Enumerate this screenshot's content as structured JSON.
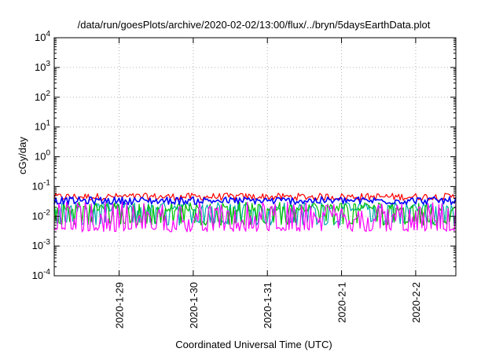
{
  "chart_data": {
    "type": "line",
    "title": "/data/run/goesPlots/archive/2020-02-02/13:00/flux/../bryn/5daysEarthData.plot",
    "xlabel": "Coordinated Universal Time (UTC)",
    "ylabel": "cGy/day",
    "yscale": "log",
    "ylim": [
      0.0001,
      10000
    ],
    "xlim": [
      "2020-01-28T03:00",
      "2020-02-02T13:00"
    ],
    "y_ticks": [
      {
        "base": "10",
        "exp": "-4"
      },
      {
        "base": "10",
        "exp": "-3"
      },
      {
        "base": "10",
        "exp": "-2"
      },
      {
        "base": "10",
        "exp": "-1"
      },
      {
        "base": "10",
        "exp": "0"
      },
      {
        "base": "10",
        "exp": "1"
      },
      {
        "base": "10",
        "exp": "2"
      },
      {
        "base": "10",
        "exp": "3"
      },
      {
        "base": "10",
        "exp": "4"
      }
    ],
    "x_ticks": [
      "2020-1-29",
      "2020-1-30",
      "2020-1-31",
      "2020-2-1",
      "2020-2-2"
    ],
    "x_tick_times": [
      "2020-01-29T00:00",
      "2020-01-30T00:00",
      "2020-01-31T00:00",
      "2020-02-01T00:00",
      "2020-02-02T00:00"
    ],
    "grid": true,
    "series": [
      {
        "color": "#ff0000",
        "values_range": [
          0.025,
          0.06
        ]
      },
      {
        "color": "#0000ff",
        "values_range": [
          0.018,
          0.045
        ]
      },
      {
        "color": "#00aaaa",
        "values_range": [
          0.005,
          0.03
        ]
      },
      {
        "color": "#00c000",
        "values_range": [
          0.005,
          0.03
        ]
      },
      {
        "color": "#ff00ff",
        "values_range": [
          0.003,
          0.03
        ]
      }
    ]
  }
}
